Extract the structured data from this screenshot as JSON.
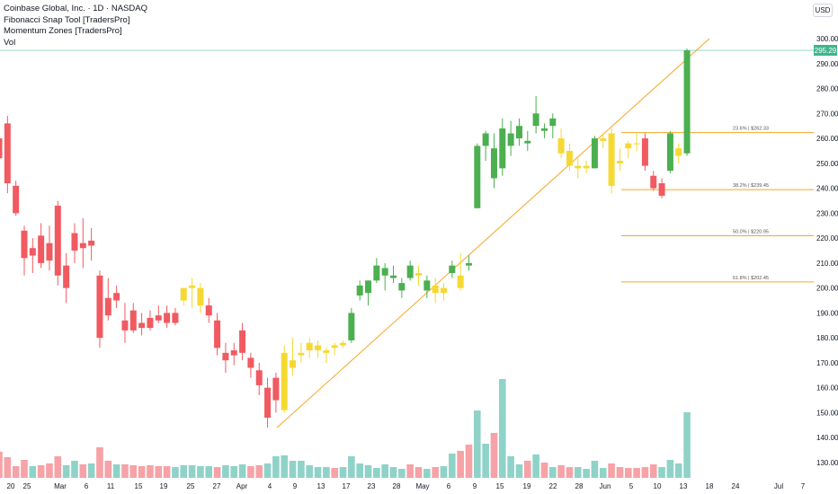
{
  "header": {
    "title": "Coinbase Global, Inc. · 1D · NASDAQ",
    "indicators": [
      "Fibonacci Snap Tool [TradersPro]",
      "Momentum Zones [TradersPro]",
      "Vol"
    ],
    "currency_button": "USD",
    "last_price_tag": "295.29"
  },
  "colors": {
    "bull": "#4caf50",
    "bear": "#f05a60",
    "neutral": "#f5d832",
    "vol_bull": "#8fd2c8",
    "vol_bear": "#f6a2a6",
    "fib": "#f5a623",
    "price_line": "#3fb58b"
  },
  "chart_data": {
    "type": "candlestick",
    "symbol": "COIN",
    "interval": "1D",
    "y_ticks": [
      "300.00",
      "290.00",
      "280.00",
      "270.00",
      "260.00",
      "250.00",
      "240.00",
      "230.00",
      "220.00",
      "210.00",
      "200.00",
      "190.00",
      "180.00",
      "170.00",
      "160.00",
      "150.00",
      "140.00",
      "130.00"
    ],
    "x_ticks": [
      "20",
      "25",
      "Mar",
      "6",
      "11",
      "15",
      "19",
      "25",
      "27",
      "Apr",
      "4",
      "9",
      "13",
      "17",
      "23",
      "28",
      "May",
      "6",
      "9",
      "15",
      "19",
      "22",
      "28",
      "Jun",
      "5",
      "10",
      "13",
      "18",
      "24",
      "Jul",
      "7"
    ],
    "candles": [
      {
        "o": 260,
        "h": 264,
        "l": 246,
        "c": 252,
        "color": "bear"
      },
      {
        "o": 266,
        "h": 269,
        "l": 238,
        "c": 242,
        "color": "bear"
      },
      {
        "o": 241,
        "h": 243,
        "l": 229,
        "c": 230,
        "color": "bear"
      },
      {
        "o": 223,
        "h": 225,
        "l": 205,
        "c": 212,
        "color": "bear"
      },
      {
        "o": 213,
        "h": 220,
        "l": 206,
        "c": 216,
        "color": "bear"
      },
      {
        "o": 221,
        "h": 226,
        "l": 208,
        "c": 210,
        "color": "bear"
      },
      {
        "o": 218,
        "h": 225,
        "l": 207,
        "c": 211,
        "color": "bear"
      },
      {
        "o": 233,
        "h": 235,
        "l": 201,
        "c": 205,
        "color": "bear"
      },
      {
        "o": 209,
        "h": 214,
        "l": 194,
        "c": 200,
        "color": "bear"
      },
      {
        "o": 222,
        "h": 226,
        "l": 210,
        "c": 215,
        "color": "bear"
      },
      {
        "o": 216,
        "h": 228,
        "l": 208,
        "c": 218,
        "color": "bear"
      },
      {
        "o": 219,
        "h": 224,
        "l": 211,
        "c": 217,
        "color": "bear"
      },
      {
        "o": 205,
        "h": 207,
        "l": 176,
        "c": 180,
        "color": "bear"
      },
      {
        "o": 196,
        "h": 204,
        "l": 187,
        "c": 189,
        "color": "bear"
      },
      {
        "o": 198,
        "h": 201,
        "l": 192,
        "c": 195,
        "color": "bear"
      },
      {
        "o": 187,
        "h": 194,
        "l": 178,
        "c": 183,
        "color": "bear"
      },
      {
        "o": 191,
        "h": 194,
        "l": 182,
        "c": 183,
        "color": "bear"
      },
      {
        "o": 186,
        "h": 190,
        "l": 181,
        "c": 184,
        "color": "bear"
      },
      {
        "o": 188,
        "h": 191,
        "l": 183,
        "c": 184,
        "color": "bear"
      },
      {
        "o": 189,
        "h": 193,
        "l": 186,
        "c": 187,
        "color": "bear"
      },
      {
        "o": 190,
        "h": 193,
        "l": 184,
        "c": 186,
        "color": "bear"
      },
      {
        "o": 190,
        "h": 192,
        "l": 185,
        "c": 186,
        "color": "bear"
      },
      {
        "o": 195,
        "h": 200,
        "l": 193,
        "c": 200,
        "color": "neutral"
      },
      {
        "o": 200,
        "h": 204,
        "l": 192,
        "c": 201,
        "color": "neutral"
      },
      {
        "o": 200,
        "h": 202,
        "l": 190,
        "c": 193,
        "color": "neutral"
      },
      {
        "o": 193,
        "h": 196,
        "l": 186,
        "c": 189,
        "color": "bear"
      },
      {
        "o": 187,
        "h": 190,
        "l": 173,
        "c": 176,
        "color": "bear"
      },
      {
        "o": 174,
        "h": 178,
        "l": 166,
        "c": 171,
        "color": "bear"
      },
      {
        "o": 175,
        "h": 178,
        "l": 169,
        "c": 173,
        "color": "bear"
      },
      {
        "o": 183,
        "h": 186,
        "l": 171,
        "c": 174,
        "color": "bear"
      },
      {
        "o": 172,
        "h": 174,
        "l": 164,
        "c": 168,
        "color": "bear"
      },
      {
        "o": 167,
        "h": 170,
        "l": 157,
        "c": 161,
        "color": "bear"
      },
      {
        "o": 160,
        "h": 164,
        "l": 144,
        "c": 148,
        "color": "bear"
      },
      {
        "o": 164,
        "h": 166,
        "l": 150,
        "c": 155,
        "color": "bear"
      },
      {
        "o": 151,
        "h": 177,
        "l": 150,
        "c": 174,
        "color": "neutral"
      },
      {
        "o": 168,
        "h": 180,
        "l": 165,
        "c": 171,
        "color": "neutral"
      },
      {
        "o": 174,
        "h": 178,
        "l": 170,
        "c": 173,
        "color": "neutral"
      },
      {
        "o": 175,
        "h": 180,
        "l": 172,
        "c": 178,
        "color": "neutral"
      },
      {
        "o": 177,
        "h": 179,
        "l": 172,
        "c": 175,
        "color": "neutral"
      },
      {
        "o": 174,
        "h": 176,
        "l": 170,
        "c": 175,
        "color": "neutral"
      },
      {
        "o": 176,
        "h": 178,
        "l": 173,
        "c": 177,
        "color": "neutral"
      },
      {
        "o": 178,
        "h": 179,
        "l": 176,
        "c": 177,
        "color": "neutral"
      },
      {
        "o": 179,
        "h": 192,
        "l": 178,
        "c": 190,
        "color": "bull"
      },
      {
        "o": 197,
        "h": 203,
        "l": 195,
        "c": 201,
        "color": "bull"
      },
      {
        "o": 198,
        "h": 203,
        "l": 193,
        "c": 203,
        "color": "bull"
      },
      {
        "o": 203,
        "h": 212,
        "l": 202,
        "c": 209,
        "color": "bull"
      },
      {
        "o": 205,
        "h": 210,
        "l": 199,
        "c": 208,
        "color": "bull"
      },
      {
        "o": 204,
        "h": 209,
        "l": 202,
        "c": 205,
        "color": "bull"
      },
      {
        "o": 202,
        "h": 204,
        "l": 196,
        "c": 199,
        "color": "bull"
      },
      {
        "o": 204,
        "h": 211,
        "l": 203,
        "c": 209,
        "color": "bull"
      },
      {
        "o": 205,
        "h": 209,
        "l": 201,
        "c": 206,
        "color": "neutral"
      },
      {
        "o": 203,
        "h": 205,
        "l": 196,
        "c": 199,
        "color": "bull"
      },
      {
        "o": 198,
        "h": 204,
        "l": 194,
        "c": 201,
        "color": "neutral"
      },
      {
        "o": 198,
        "h": 202,
        "l": 195,
        "c": 200,
        "color": "neutral"
      },
      {
        "o": 206,
        "h": 211,
        "l": 204,
        "c": 209,
        "color": "bull"
      },
      {
        "o": 200,
        "h": 214,
        "l": 199,
        "c": 205,
        "color": "neutral"
      },
      {
        "o": 209,
        "h": 213,
        "l": 207,
        "c": 210,
        "color": "bull"
      },
      {
        "o": 232,
        "h": 258,
        "l": 232,
        "c": 257,
        "color": "bull"
      },
      {
        "o": 257,
        "h": 263,
        "l": 251,
        "c": 262,
        "color": "bull"
      },
      {
        "o": 244,
        "h": 262,
        "l": 240,
        "c": 256,
        "color": "bull"
      },
      {
        "o": 248,
        "h": 268,
        "l": 245,
        "c": 264,
        "color": "bull"
      },
      {
        "o": 257,
        "h": 267,
        "l": 253,
        "c": 262,
        "color": "bull"
      },
      {
        "o": 260,
        "h": 268,
        "l": 257,
        "c": 265,
        "color": "bull"
      },
      {
        "o": 258,
        "h": 263,
        "l": 255,
        "c": 259,
        "color": "bull"
      },
      {
        "o": 265,
        "h": 277,
        "l": 262,
        "c": 270,
        "color": "bull"
      },
      {
        "o": 263,
        "h": 266,
        "l": 260,
        "c": 264,
        "color": "bull"
      },
      {
        "o": 265,
        "h": 270,
        "l": 260,
        "c": 268,
        "color": "bull"
      },
      {
        "o": 260,
        "h": 264,
        "l": 252,
        "c": 254,
        "color": "neutral"
      },
      {
        "o": 255,
        "h": 258,
        "l": 247,
        "c": 249,
        "color": "neutral"
      },
      {
        "o": 249,
        "h": 252,
        "l": 244,
        "c": 248,
        "color": "neutral"
      },
      {
        "o": 249,
        "h": 251,
        "l": 246,
        "c": 248,
        "color": "neutral"
      },
      {
        "o": 248,
        "h": 261,
        "l": 248,
        "c": 260,
        "color": "bull"
      },
      {
        "o": 259,
        "h": 262,
        "l": 256,
        "c": 260,
        "color": "neutral"
      },
      {
        "o": 241,
        "h": 264,
        "l": 238,
        "c": 262,
        "color": "neutral"
      },
      {
        "o": 250,
        "h": 256,
        "l": 247,
        "c": 251,
        "color": "neutral"
      },
      {
        "o": 256,
        "h": 259,
        "l": 252,
        "c": 258,
        "color": "neutral"
      },
      {
        "o": 258,
        "h": 262,
        "l": 255,
        "c": 258,
        "color": "neutral"
      },
      {
        "o": 260,
        "h": 262,
        "l": 247,
        "c": 249,
        "color": "bear"
      },
      {
        "o": 245,
        "h": 247,
        "l": 239,
        "c": 240,
        "color": "bear"
      },
      {
        "o": 242,
        "h": 244,
        "l": 236,
        "c": 237,
        "color": "bear"
      },
      {
        "o": 247,
        "h": 263,
        "l": 246,
        "c": 262,
        "color": "bull"
      },
      {
        "o": 253,
        "h": 258,
        "l": 250,
        "c": 256,
        "color": "neutral"
      },
      {
        "o": 254,
        "h": 296,
        "l": 253,
        "c": 295.3,
        "color": "bull"
      }
    ],
    "volume": [
      {
        "v": 29,
        "color": "bear"
      },
      {
        "v": 23,
        "color": "bear"
      },
      {
        "v": 13,
        "color": "bear"
      },
      {
        "v": 20,
        "color": "bear"
      },
      {
        "v": 13,
        "color": "bull"
      },
      {
        "v": 14,
        "color": "bear"
      },
      {
        "v": 16,
        "color": "bear"
      },
      {
        "v": 24,
        "color": "bear"
      },
      {
        "v": 14,
        "color": "bull"
      },
      {
        "v": 19,
        "color": "bull"
      },
      {
        "v": 15,
        "color": "bear"
      },
      {
        "v": 16,
        "color": "bull"
      },
      {
        "v": 34,
        "color": "bear"
      },
      {
        "v": 19,
        "color": "bear"
      },
      {
        "v": 15,
        "color": "bull"
      },
      {
        "v": 15,
        "color": "bear"
      },
      {
        "v": 14,
        "color": "bear"
      },
      {
        "v": 13,
        "color": "bear"
      },
      {
        "v": 14,
        "color": "bear"
      },
      {
        "v": 13,
        "color": "bear"
      },
      {
        "v": 13,
        "color": "bear"
      },
      {
        "v": 12,
        "color": "bull"
      },
      {
        "v": 14,
        "color": "bull"
      },
      {
        "v": 14,
        "color": "bull"
      },
      {
        "v": 13,
        "color": "bull"
      },
      {
        "v": 13,
        "color": "bull"
      },
      {
        "v": 12,
        "color": "bear"
      },
      {
        "v": 14,
        "color": "bull"
      },
      {
        "v": 13,
        "color": "bull"
      },
      {
        "v": 15,
        "color": "bull"
      },
      {
        "v": 13,
        "color": "bear"
      },
      {
        "v": 14,
        "color": "bear"
      },
      {
        "v": 16,
        "color": "bull"
      },
      {
        "v": 24,
        "color": "bull"
      },
      {
        "v": 25,
        "color": "bull"
      },
      {
        "v": 19,
        "color": "bull"
      },
      {
        "v": 19,
        "color": "bull"
      },
      {
        "v": 14,
        "color": "bull"
      },
      {
        "v": 12,
        "color": "bull"
      },
      {
        "v": 12,
        "color": "bull"
      },
      {
        "v": 11,
        "color": "bear"
      },
      {
        "v": 12,
        "color": "bull"
      },
      {
        "v": 24,
        "color": "bull"
      },
      {
        "v": 16,
        "color": "bull"
      },
      {
        "v": 14,
        "color": "bull"
      },
      {
        "v": 11,
        "color": "bull"
      },
      {
        "v": 15,
        "color": "bull"
      },
      {
        "v": 12,
        "color": "bull"
      },
      {
        "v": 10,
        "color": "bull"
      },
      {
        "v": 15,
        "color": "bear"
      },
      {
        "v": 12,
        "color": "bear"
      },
      {
        "v": 10,
        "color": "bull"
      },
      {
        "v": 12,
        "color": "bear"
      },
      {
        "v": 13,
        "color": "bull"
      },
      {
        "v": 27,
        "color": "bull"
      },
      {
        "v": 30,
        "color": "bear"
      },
      {
        "v": 37,
        "color": "bear"
      },
      {
        "v": 75,
        "color": "bull"
      },
      {
        "v": 38,
        "color": "bull"
      },
      {
        "v": 50,
        "color": "bear"
      },
      {
        "v": 110,
        "color": "bull"
      },
      {
        "v": 24,
        "color": "bull"
      },
      {
        "v": 15,
        "color": "bull"
      },
      {
        "v": 19,
        "color": "bear"
      },
      {
        "v": 26,
        "color": "bull"
      },
      {
        "v": 17,
        "color": "bear"
      },
      {
        "v": 12,
        "color": "bull"
      },
      {
        "v": 14,
        "color": "bear"
      },
      {
        "v": 12,
        "color": "bear"
      },
      {
        "v": 12,
        "color": "bull"
      },
      {
        "v": 10,
        "color": "bull"
      },
      {
        "v": 19,
        "color": "bull"
      },
      {
        "v": 11,
        "color": "bull"
      },
      {
        "v": 16,
        "color": "bear"
      },
      {
        "v": 12,
        "color": "bear"
      },
      {
        "v": 11,
        "color": "bear"
      },
      {
        "v": 11,
        "color": "bear"
      },
      {
        "v": 12,
        "color": "bear"
      },
      {
        "v": 15,
        "color": "bear"
      },
      {
        "v": 12,
        "color": "bull"
      },
      {
        "v": 20,
        "color": "bull"
      },
      {
        "v": 16,
        "color": "bull"
      },
      {
        "v": 73,
        "color": "bull"
      }
    ],
    "fib_levels": [
      {
        "label": "23.6% | $262.33",
        "price": 262.33
      },
      {
        "label": "38.2% | $239.45",
        "price": 239.45
      },
      {
        "label": "50.0% | $220.95",
        "price": 220.95
      },
      {
        "label": "61.8% | $202.45",
        "price": 202.45
      }
    ],
    "trendline": {
      "from_price": 144,
      "to_price": 300
    },
    "last_price": 295.29,
    "ylim": [
      125,
      310
    ]
  }
}
